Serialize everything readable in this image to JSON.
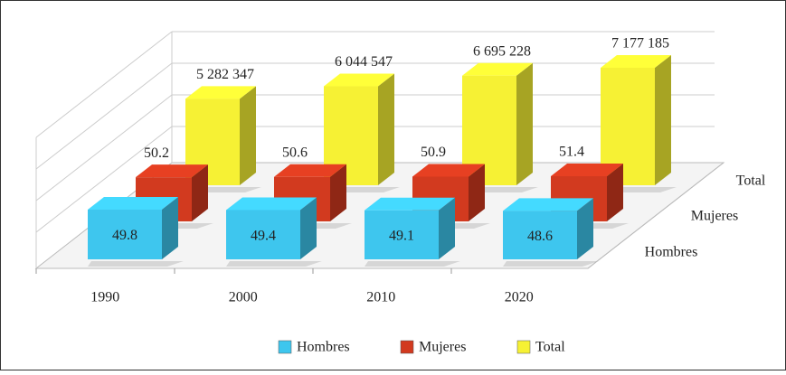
{
  "chart_data": {
    "type": "bar3d",
    "categories": [
      "1990",
      "2000",
      "2010",
      "2020"
    ],
    "series": [
      {
        "name": "Hombres",
        "color": "#3ec6ee",
        "values": [
          49.8,
          49.4,
          49.1,
          48.6
        ]
      },
      {
        "name": "Mujeres",
        "color": "#d23a1f",
        "values": [
          50.2,
          50.6,
          50.9,
          51.4
        ]
      },
      {
        "name": "Total",
        "color": "#f6f134",
        "values": [
          5282347,
          6044547,
          6695228,
          7177185
        ],
        "value_labels": [
          "5 282 347",
          "6 044 547",
          "6 695 228",
          "7 177 185"
        ]
      }
    ],
    "grid": true,
    "legend": "bottom"
  }
}
